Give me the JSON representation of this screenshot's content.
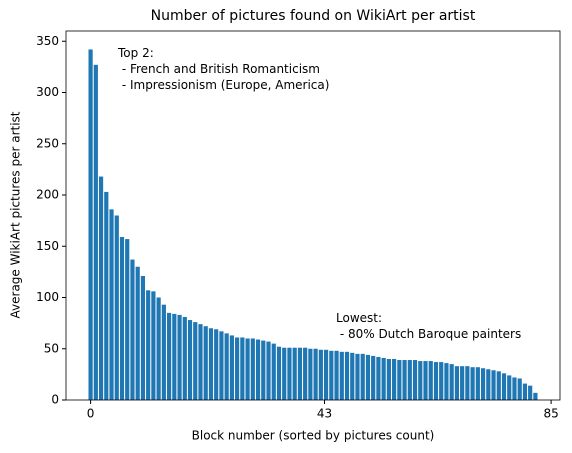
{
  "chart_data": {
    "type": "bar",
    "title": "Number of pictures found on WikiArt per artist",
    "x_label": "Block number (sorted by pictures count)",
    "y_label": "Average WikiArt pictures per artist",
    "x": [
      0,
      1,
      2,
      3,
      4,
      5,
      6,
      7,
      8,
      9,
      10,
      11,
      12,
      13,
      14,
      15,
      16,
      17,
      18,
      19,
      20,
      21,
      22,
      23,
      24,
      25,
      26,
      27,
      28,
      29,
      30,
      31,
      32,
      33,
      34,
      35,
      36,
      37,
      38,
      39,
      40,
      41,
      42,
      43,
      44,
      45,
      46,
      47,
      48,
      49,
      50,
      51,
      52,
      53,
      54,
      55,
      56,
      57,
      58,
      59,
      60,
      61,
      62,
      63,
      64,
      65,
      66,
      67,
      68,
      69,
      70,
      71,
      72,
      73,
      74,
      75,
      76,
      77,
      78,
      79,
      80,
      81,
      82,
      83,
      84,
      85
    ],
    "values": [
      342,
      327,
      218,
      203,
      186,
      180,
      159,
      157,
      137,
      130,
      121,
      107,
      106,
      100,
      93,
      85,
      84,
      83,
      81,
      78,
      76,
      74,
      72,
      70,
      69,
      67,
      65,
      63,
      61,
      61,
      60,
      60,
      59,
      58,
      57,
      55,
      52,
      51,
      51,
      51,
      51,
      51,
      50,
      50,
      49,
      49,
      48,
      48,
      47,
      47,
      46,
      45,
      45,
      44,
      43,
      42,
      41,
      40,
      40,
      39,
      39,
      39,
      39,
      38,
      38,
      38,
      37,
      37,
      36,
      35,
      33,
      33,
      33,
      32,
      32,
      31,
      30,
      29,
      28,
      26,
      24,
      22,
      21,
      16,
      14,
      7
    ],
    "color": "#1f77b4",
    "xlim": [
      -4.7,
      89.7
    ],
    "xticks": [
      {
        "value": 0,
        "label": "0"
      },
      {
        "value": 44.7,
        "label": "43"
      },
      {
        "value": 88,
        "label": "85"
      }
    ],
    "ylim": [
      0,
      360
    ],
    "yticks": [
      0,
      50,
      100,
      150,
      200,
      250,
      300,
      350
    ],
    "annotations": [
      {
        "lines": [
          "Top 2:",
          " - French and British Romanticism",
          " - Impressionism (Europe, America)"
        ]
      },
      {
        "lines": [
          "Lowest:",
          " - 80% Dutch Baroque painters"
        ]
      }
    ]
  }
}
